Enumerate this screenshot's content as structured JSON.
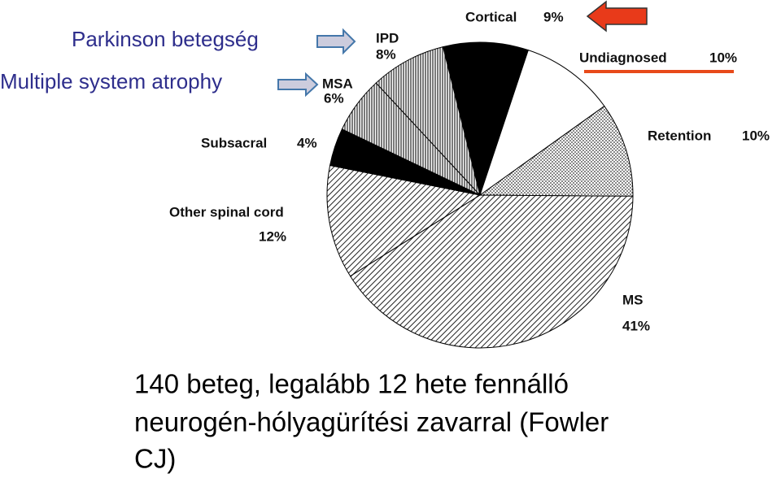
{
  "chart_data": {
    "type": "pie",
    "categories": [
      "Cortical",
      "Undiagnosed",
      "Retention",
      "MS",
      "Other spinal cord",
      "Subsacral",
      "MSA",
      "IPD"
    ],
    "values": [
      9,
      10,
      10,
      41,
      12,
      4,
      6,
      8
    ],
    "value_labels": [
      "9%",
      "10%",
      "10%",
      "41%",
      "12%",
      "4%",
      "6%",
      "8%"
    ],
    "colors": [
      "#000000",
      "#ffffff",
      "#aaaaaa",
      "#555555",
      "#555555",
      "#000000",
      "#444444",
      "#666666"
    ],
    "patterns": [
      "solid",
      "solid",
      "dots",
      "hatch",
      "hatch",
      "solid",
      "vlines",
      "vlines"
    ],
    "annotations": [
      "Parkinson betegség",
      "Multiple system atrophy"
    ],
    "caption": [
      "140 beteg, legalább 12 hete fennálló",
      "neurogén-hólyagürítési zavarral (Fowler",
      "CJ)"
    ]
  }
}
